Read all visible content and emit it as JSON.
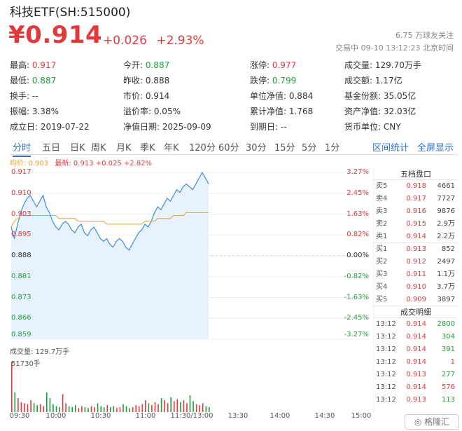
{
  "header": {
    "title": "科技ETF(SH:515000)",
    "price": "¥0.914",
    "change": "+0.026",
    "change_pct": "+2.93%",
    "follow": "6.75 万球友关注",
    "status": "交易中  09-10 13:12:23 北京时间"
  },
  "stats": [
    [
      {
        "label": "最高:",
        "value": "0.917",
        "tone": "red"
      },
      {
        "label": "今开:",
        "value": "0.887",
        "tone": "green"
      },
      {
        "label": "涨停:",
        "value": "0.977",
        "tone": "red"
      },
      {
        "label": "成交量:",
        "value": "129.70万手",
        "tone": ""
      }
    ],
    [
      {
        "label": "最低:",
        "value": "0.887",
        "tone": "green"
      },
      {
        "label": "昨收:",
        "value": "0.888",
        "tone": ""
      },
      {
        "label": "跌停:",
        "value": "0.799",
        "tone": "green"
      },
      {
        "label": "成交额:",
        "value": "1.17亿",
        "tone": ""
      }
    ],
    [
      {
        "label": "换手:",
        "value": "--",
        "tone": ""
      },
      {
        "label": "市价:",
        "value": "0.914",
        "tone": ""
      },
      {
        "label": "单位净值:",
        "value": "0.884",
        "tone": ""
      },
      {
        "label": "基金份额:",
        "value": "35.05亿",
        "tone": ""
      }
    ],
    [
      {
        "label": "振幅:",
        "value": "3.38%",
        "tone": ""
      },
      {
        "label": "溢价率:",
        "value": "0.05%",
        "tone": ""
      },
      {
        "label": "累计净值:",
        "value": "1.768",
        "tone": ""
      },
      {
        "label": "资产净值:",
        "value": "32.03亿",
        "tone": ""
      }
    ],
    [
      {
        "label": "成立日:",
        "value": "2019-07-22",
        "tone": ""
      },
      {
        "label": "净值日期:",
        "value": "2025-09-09",
        "tone": ""
      },
      {
        "label": "到期日:",
        "value": "--",
        "tone": ""
      },
      {
        "label": "货币单位:",
        "value": "CNY",
        "tone": ""
      }
    ]
  ],
  "tabs": [
    "分时",
    "五日",
    "日K",
    "周K",
    "月K",
    "季K",
    "年K",
    "120分",
    "60分",
    "30分",
    "15分",
    "5分",
    "1分"
  ],
  "active_tab": "分时",
  "tab_links": [
    "区间统计",
    "全屏显示"
  ],
  "legend": {
    "avg": "均价: 0.903",
    "last": "最新: 0.913 +0.025 +2.82%"
  },
  "y_left": [
    "0.917",
    "0.910",
    "0.903",
    "0.895",
    "0.888",
    "0.881",
    "0.873",
    "0.866",
    "0.859"
  ],
  "y_right": [
    "3.27%",
    "2.45%",
    "1.63%",
    "0.82%",
    "0.00%",
    "-0.82%",
    "-1.63%",
    "-2.45%",
    "-3.27%"
  ],
  "volume": {
    "title": "成交量: 129.7万手",
    "label": "51730手"
  },
  "x_axis": [
    "09:30",
    "10:00",
    "10:30",
    "11:00",
    "11:30/13:00",
    "13:30",
    "14:00",
    "14:30",
    "15:00"
  ],
  "order_book": {
    "title": "五档盘口",
    "asks": [
      {
        "level": "卖5",
        "price": "0.918",
        "vol": "4661"
      },
      {
        "level": "卖4",
        "price": "0.917",
        "vol": "7727"
      },
      {
        "level": "卖3",
        "price": "0.916",
        "vol": "9876"
      },
      {
        "level": "卖2",
        "price": "0.915",
        "vol": "2.9万"
      },
      {
        "level": "卖1",
        "price": "0.914",
        "vol": "2.2万"
      }
    ],
    "bids": [
      {
        "level": "买1",
        "price": "0.913",
        "vol": "852"
      },
      {
        "level": "买2",
        "price": "0.912",
        "vol": "2497"
      },
      {
        "level": "买3",
        "price": "0.911",
        "vol": "1.1万"
      },
      {
        "level": "买4",
        "price": "0.910",
        "vol": "3.7万"
      },
      {
        "level": "买5",
        "price": "0.909",
        "vol": "3897"
      }
    ],
    "trades_title": "成交明细",
    "trades": [
      {
        "time": "13:12",
        "price": "0.914",
        "vol": "2800",
        "tone": "green"
      },
      {
        "time": "13:12",
        "price": "0.914",
        "vol": "304",
        "tone": "green"
      },
      {
        "time": "13:12",
        "price": "0.914",
        "vol": "391",
        "tone": "green"
      },
      {
        "time": "13:12",
        "price": "0.914",
        "vol": "1",
        "tone": "red"
      },
      {
        "time": "13:12",
        "price": "0.913",
        "vol": "277",
        "tone": "green"
      },
      {
        "time": "13:12",
        "price": "0.914",
        "vol": "576",
        "tone": "red"
      },
      {
        "time": "13:12",
        "price": "0.913",
        "vol": "113",
        "tone": "green"
      }
    ]
  },
  "chart_data": {
    "type": "line",
    "x_range": [
      "09:30",
      "15:00"
    ],
    "ylim": [
      0.859,
      0.917
    ],
    "prev_close": 0.888,
    "series": [
      {
        "name": "最新",
        "color": "#3a8ee6",
        "values": [
          0.898,
          0.894,
          0.899,
          0.903,
          0.906,
          0.908,
          0.909,
          0.907,
          0.905,
          0.907,
          0.909,
          0.905,
          0.903,
          0.9,
          0.898,
          0.897,
          0.899,
          0.9,
          0.899,
          0.897,
          0.896,
          0.898,
          0.899,
          0.896,
          0.895,
          0.897,
          0.898,
          0.896,
          0.894,
          0.893,
          0.894,
          0.892,
          0.891,
          0.893,
          0.894,
          0.893,
          0.891,
          0.89,
          0.892,
          0.894,
          0.896,
          0.897,
          0.899,
          0.898,
          0.9,
          0.903,
          0.905,
          0.904,
          0.906,
          0.908,
          0.907,
          0.909,
          0.911,
          0.91,
          0.912,
          0.913,
          0.912,
          0.911,
          0.913,
          0.915,
          0.917,
          0.915,
          0.913
        ]
      },
      {
        "name": "均价",
        "color": "#f0a020",
        "values": [
          0.898,
          0.9,
          0.901,
          0.902,
          0.902,
          0.902,
          0.902,
          0.902,
          0.902,
          0.902,
          0.902,
          0.902,
          0.902,
          0.902,
          0.902,
          0.901,
          0.901,
          0.901,
          0.901,
          0.901,
          0.901,
          0.9,
          0.9,
          0.9,
          0.9,
          0.9,
          0.9,
          0.9,
          0.9,
          0.9,
          0.899,
          0.899,
          0.899,
          0.899,
          0.899,
          0.899,
          0.899,
          0.899,
          0.899,
          0.899,
          0.899,
          0.899,
          0.9,
          0.9,
          0.9,
          0.9,
          0.901,
          0.901,
          0.901,
          0.901,
          0.901,
          0.902,
          0.902,
          0.902,
          0.902,
          0.903,
          0.903,
          0.903,
          0.903,
          0.903,
          0.903,
          0.903,
          0.903
        ]
      }
    ],
    "volume": [
      51,
      20,
      14,
      10,
      9,
      8,
      12,
      9,
      7,
      8,
      6,
      20,
      14,
      8,
      6,
      5,
      18,
      9,
      6,
      5,
      7,
      4,
      6,
      5,
      4,
      6,
      5,
      9,
      6,
      5,
      7,
      5,
      6,
      4,
      5,
      8,
      6,
      4,
      5,
      7,
      6,
      8,
      12,
      9,
      7,
      10,
      8,
      14,
      12,
      9,
      15,
      11,
      13,
      10,
      12,
      9,
      17,
      11,
      8,
      7,
      9,
      6,
      5
    ],
    "volume_max": 51730
  }
}
